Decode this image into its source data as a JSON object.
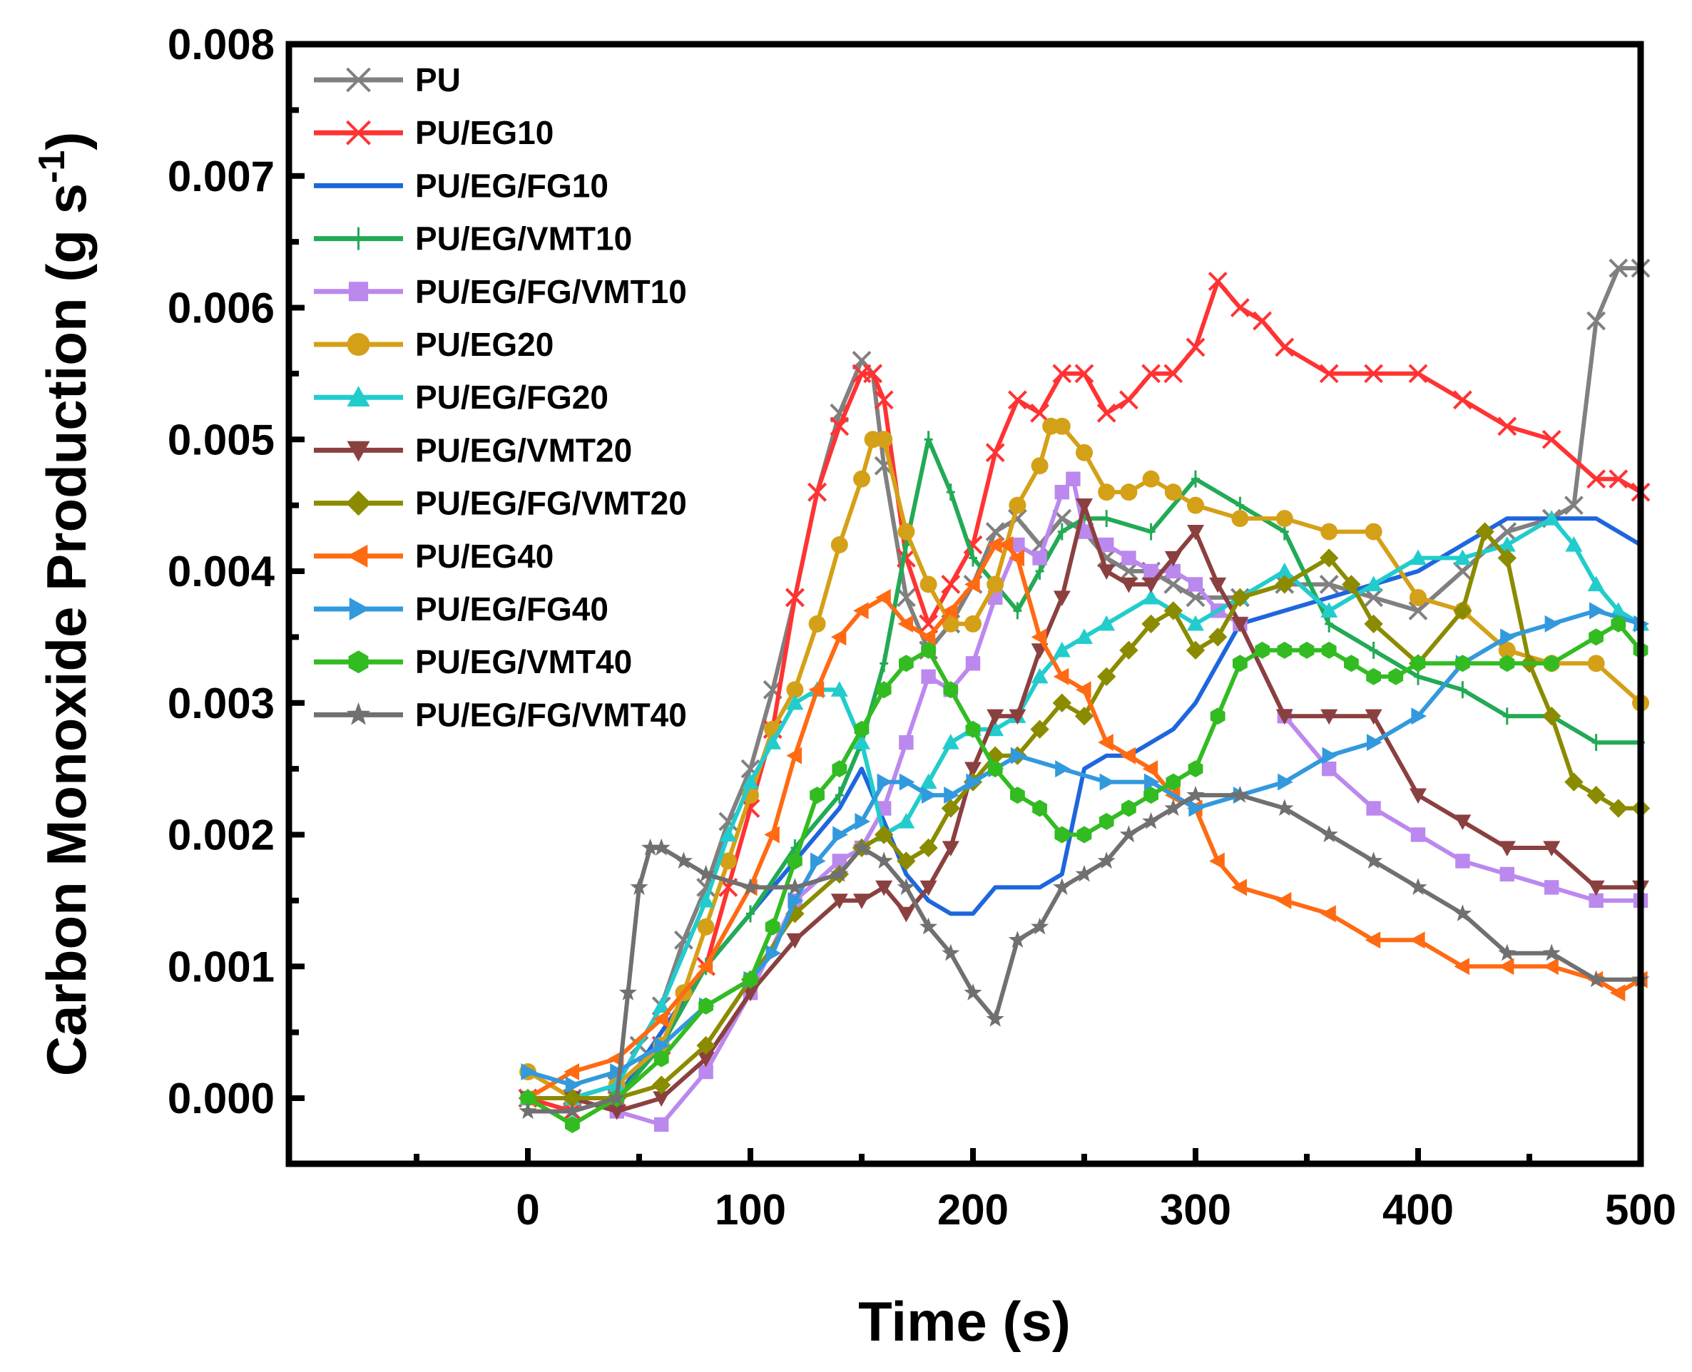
{
  "chart_data": {
    "type": "line",
    "title": "",
    "xlabel": "Time (s)",
    "ylabel_main": "Carbon Monoxide Production (g s",
    "ylabel_sup": "-1",
    "ylabel_close": ")",
    "xlim": [
      -100,
      500
    ],
    "ylim": [
      -0.0005,
      0.008
    ],
    "xticks": [
      0,
      100,
      200,
      300,
      400,
      500
    ],
    "xtick_labels": [
      "0",
      "100",
      "200",
      "300",
      "400",
      "500"
    ],
    "yticks": [
      0,
      0.001,
      0.002,
      0.003,
      0.004,
      0.005,
      0.006,
      0.007,
      0.008
    ],
    "ytick_labels": [
      "0.000",
      "0.001",
      "0.002",
      "0.003",
      "0.004",
      "0.005",
      "0.006",
      "0.007",
      "0.008"
    ],
    "legend_position": "top-left",
    "grid": false,
    "series": [
      {
        "name": "PU",
        "color": "#808080",
        "marker": "x",
        "x": [
          0,
          20,
          40,
          50,
          60,
          70,
          80,
          90,
          100,
          110,
          120,
          130,
          140,
          150,
          155,
          160,
          170,
          180,
          190,
          200,
          210,
          220,
          230,
          240,
          250,
          260,
          270,
          280,
          290,
          300,
          320,
          340,
          360,
          380,
          400,
          420,
          440,
          460,
          470,
          480,
          490,
          500
        ],
        "y": [
          0,
          0,
          0.0001,
          0.0004,
          0.0007,
          0.0012,
          0.0016,
          0.0021,
          0.0025,
          0.0031,
          0.0038,
          0.0046,
          0.0052,
          0.0056,
          0.0055,
          0.0048,
          0.0038,
          0.0034,
          0.0036,
          0.0039,
          0.0043,
          0.0044,
          0.0042,
          0.0044,
          0.0043,
          0.0041,
          0.004,
          0.004,
          0.0039,
          0.0038,
          0.0038,
          0.0039,
          0.0039,
          0.0038,
          0.0037,
          0.004,
          0.0043,
          0.0044,
          0.0045,
          0.0059,
          0.0063,
          0.0063
        ]
      },
      {
        "name": "PU/EG10",
        "color": "#ff3333",
        "marker": "x",
        "x": [
          0,
          20,
          40,
          60,
          80,
          90,
          100,
          110,
          120,
          130,
          140,
          150,
          155,
          160,
          170,
          180,
          190,
          200,
          210,
          220,
          230,
          240,
          250,
          260,
          270,
          280,
          290,
          300,
          310,
          320,
          330,
          340,
          360,
          380,
          400,
          420,
          440,
          460,
          480,
          490,
          500
        ],
        "y": [
          0,
          -0.0001,
          0,
          0.0004,
          0.001,
          0.0016,
          0.0022,
          0.0028,
          0.0038,
          0.0046,
          0.0051,
          0.0055,
          0.0055,
          0.0053,
          0.0041,
          0.0036,
          0.0039,
          0.0042,
          0.0049,
          0.0053,
          0.0052,
          0.0055,
          0.0055,
          0.0052,
          0.0053,
          0.0055,
          0.0055,
          0.0057,
          0.0062,
          0.006,
          0.0059,
          0.0057,
          0.0055,
          0.0055,
          0.0055,
          0.0053,
          0.0051,
          0.005,
          0.0047,
          0.0047,
          0.0046
        ]
      },
      {
        "name": "PU/EG/FG10",
        "color": "#1e66dd",
        "marker": "none",
        "x": [
          0,
          20,
          40,
          60,
          80,
          100,
          120,
          140,
          150,
          160,
          170,
          180,
          190,
          200,
          210,
          220,
          230,
          240,
          250,
          260,
          270,
          280,
          290,
          300,
          320,
          340,
          360,
          380,
          400,
          420,
          440,
          460,
          480,
          490,
          500
        ],
        "y": [
          0,
          0,
          0,
          0.0005,
          0.001,
          0.0014,
          0.0018,
          0.0022,
          0.0025,
          0.0021,
          0.0017,
          0.0015,
          0.0014,
          0.0014,
          0.0016,
          0.0016,
          0.0016,
          0.0017,
          0.0025,
          0.0026,
          0.0026,
          0.0027,
          0.0028,
          0.003,
          0.0036,
          0.0037,
          0.0038,
          0.0039,
          0.004,
          0.0042,
          0.0044,
          0.0044,
          0.0044,
          0.0043,
          0.0042
        ]
      },
      {
        "name": "PU/EG/VMT10",
        "color": "#22aa55",
        "marker": "plus",
        "x": [
          0,
          20,
          40,
          60,
          80,
          100,
          120,
          140,
          150,
          160,
          170,
          180,
          190,
          200,
          210,
          220,
          230,
          240,
          250,
          260,
          280,
          300,
          320,
          340,
          360,
          380,
          400,
          420,
          440,
          460,
          480,
          500
        ],
        "y": [
          0,
          0,
          0,
          0.0004,
          0.001,
          0.0014,
          0.0019,
          0.0023,
          0.0027,
          0.0033,
          0.0042,
          0.005,
          0.0046,
          0.0041,
          0.0039,
          0.0037,
          0.004,
          0.0043,
          0.0044,
          0.0044,
          0.0043,
          0.0047,
          0.0045,
          0.0043,
          0.0036,
          0.0034,
          0.0032,
          0.0031,
          0.0029,
          0.0029,
          0.0027,
          0.0027
        ]
      },
      {
        "name": "PU/EG/FG/VMT10",
        "color": "#bb88ee",
        "marker": "square",
        "x": [
          0,
          20,
          40,
          60,
          80,
          100,
          120,
          140,
          150,
          160,
          170,
          180,
          190,
          200,
          210,
          220,
          230,
          240,
          245,
          250,
          260,
          270,
          280,
          290,
          300,
          310,
          320,
          340,
          360,
          380,
          400,
          420,
          440,
          460,
          480,
          500
        ],
        "y": [
          0,
          0,
          -0.0001,
          -0.0002,
          0.0002,
          0.0008,
          0.0015,
          0.0018,
          0.0019,
          0.0022,
          0.0027,
          0.0032,
          0.0031,
          0.0033,
          0.0038,
          0.0042,
          0.0041,
          0.0046,
          0.0047,
          0.0043,
          0.0042,
          0.0041,
          0.004,
          0.004,
          0.0039,
          0.0037,
          0.0036,
          0.0029,
          0.0025,
          0.0022,
          0.002,
          0.0018,
          0.0017,
          0.0016,
          0.0015,
          0.0015
        ]
      },
      {
        "name": "PU/EG20",
        "color": "#d4a017",
        "marker": "circle",
        "x": [
          0,
          20,
          40,
          60,
          70,
          80,
          90,
          100,
          110,
          120,
          130,
          140,
          150,
          155,
          160,
          170,
          180,
          190,
          200,
          210,
          220,
          230,
          235,
          240,
          250,
          260,
          270,
          280,
          290,
          300,
          320,
          340,
          360,
          380,
          400,
          420,
          440,
          460,
          480,
          500
        ],
        "y": [
          0.0002,
          0,
          0.0001,
          0.0004,
          0.0008,
          0.0013,
          0.0018,
          0.0023,
          0.0028,
          0.0031,
          0.0036,
          0.0042,
          0.0047,
          0.005,
          0.005,
          0.0043,
          0.0039,
          0.0036,
          0.0036,
          0.0039,
          0.0045,
          0.0048,
          0.0051,
          0.0051,
          0.0049,
          0.0046,
          0.0046,
          0.0047,
          0.0046,
          0.0045,
          0.0044,
          0.0044,
          0.0043,
          0.0043,
          0.0038,
          0.0037,
          0.0034,
          0.0033,
          0.0033,
          0.003
        ]
      },
      {
        "name": "PU/EG/FG20",
        "color": "#22cccc",
        "marker": "triangle-up",
        "x": [
          0,
          20,
          40,
          60,
          80,
          90,
          100,
          110,
          120,
          130,
          140,
          150,
          160,
          170,
          180,
          190,
          200,
          210,
          220,
          230,
          240,
          250,
          260,
          280,
          300,
          320,
          340,
          360,
          380,
          400,
          420,
          440,
          460,
          470,
          480,
          490,
          500
        ],
        "y": [
          0,
          0,
          0.0001,
          0.0007,
          0.0015,
          0.002,
          0.0024,
          0.0027,
          0.003,
          0.0031,
          0.0031,
          0.0027,
          0.002,
          0.0021,
          0.0024,
          0.0027,
          0.0028,
          0.0028,
          0.0029,
          0.0032,
          0.0034,
          0.0035,
          0.0036,
          0.0038,
          0.0036,
          0.0038,
          0.004,
          0.0037,
          0.0039,
          0.0041,
          0.0041,
          0.0042,
          0.0044,
          0.0042,
          0.0039,
          0.0037,
          0.0036
        ]
      },
      {
        "name": "PU/EG/VMT20",
        "color": "#8b4040",
        "marker": "triangle-down",
        "x": [
          0,
          20,
          40,
          60,
          80,
          100,
          120,
          140,
          150,
          160,
          170,
          180,
          190,
          200,
          210,
          220,
          230,
          240,
          250,
          260,
          270,
          280,
          290,
          300,
          310,
          320,
          340,
          360,
          380,
          400,
          420,
          440,
          460,
          480,
          500
        ],
        "y": [
          0,
          0,
          -0.0001,
          0,
          0.0003,
          0.0008,
          0.0012,
          0.0015,
          0.0015,
          0.0016,
          0.0014,
          0.0016,
          0.0019,
          0.0025,
          0.0029,
          0.0029,
          0.0034,
          0.0038,
          0.0045,
          0.004,
          0.0039,
          0.0039,
          0.0041,
          0.0043,
          0.0039,
          0.0036,
          0.0029,
          0.0029,
          0.0029,
          0.0023,
          0.0021,
          0.0019,
          0.0019,
          0.0016,
          0.0016
        ]
      },
      {
        "name": "PU/EG/FG/VMT20",
        "color": "#8b8b00",
        "marker": "diamond",
        "x": [
          0,
          20,
          40,
          60,
          80,
          100,
          120,
          140,
          150,
          160,
          170,
          180,
          190,
          200,
          210,
          220,
          230,
          240,
          250,
          260,
          270,
          280,
          290,
          300,
          310,
          320,
          340,
          360,
          370,
          380,
          400,
          420,
          430,
          440,
          450,
          460,
          470,
          480,
          490,
          500
        ],
        "y": [
          0,
          0,
          0,
          0.0001,
          0.0004,
          0.0009,
          0.0014,
          0.0017,
          0.0019,
          0.002,
          0.0018,
          0.0019,
          0.0022,
          0.0024,
          0.0026,
          0.0026,
          0.0028,
          0.003,
          0.0029,
          0.0032,
          0.0034,
          0.0036,
          0.0037,
          0.0034,
          0.0035,
          0.0038,
          0.0039,
          0.0041,
          0.0039,
          0.0036,
          0.0033,
          0.0037,
          0.0043,
          0.0041,
          0.0033,
          0.0029,
          0.0024,
          0.0023,
          0.0022,
          0.0022
        ]
      },
      {
        "name": "PU/EG40",
        "color": "#ff6a13",
        "marker": "triangle-left",
        "x": [
          0,
          20,
          40,
          60,
          80,
          100,
          110,
          120,
          130,
          140,
          150,
          160,
          170,
          180,
          190,
          200,
          210,
          215,
          220,
          230,
          240,
          250,
          260,
          270,
          280,
          290,
          300,
          310,
          320,
          340,
          360,
          380,
          400,
          420,
          440,
          460,
          480,
          490,
          500
        ],
        "y": [
          0,
          0.0002,
          0.0003,
          0.0006,
          0.001,
          0.0016,
          0.002,
          0.0026,
          0.0031,
          0.0035,
          0.0037,
          0.0038,
          0.0036,
          0.0035,
          0.0037,
          0.0039,
          0.0042,
          0.0042,
          0.0041,
          0.0035,
          0.0032,
          0.0031,
          0.0027,
          0.0026,
          0.0025,
          0.0023,
          0.0022,
          0.0018,
          0.0016,
          0.0015,
          0.0014,
          0.0012,
          0.0012,
          0.001,
          0.001,
          0.001,
          0.0009,
          0.0008,
          0.0009
        ]
      },
      {
        "name": "PU/EG/FG40",
        "color": "#3399dd",
        "marker": "triangle-right",
        "x": [
          0,
          20,
          40,
          60,
          80,
          100,
          110,
          120,
          130,
          140,
          150,
          160,
          170,
          180,
          190,
          200,
          210,
          220,
          240,
          260,
          280,
          300,
          320,
          340,
          360,
          380,
          400,
          420,
          440,
          460,
          480,
          500
        ],
        "y": [
          0.0002,
          0.0001,
          0.0002,
          0.0004,
          0.0007,
          0.0009,
          0.0011,
          0.0015,
          0.0018,
          0.002,
          0.0021,
          0.0024,
          0.0024,
          0.0023,
          0.0023,
          0.0024,
          0.0025,
          0.0026,
          0.0025,
          0.0024,
          0.0024,
          0.0022,
          0.0023,
          0.0024,
          0.0026,
          0.0027,
          0.0029,
          0.0033,
          0.0035,
          0.0036,
          0.0037,
          0.0036
        ]
      },
      {
        "name": "PU/EG/VMT40",
        "color": "#33bb22",
        "marker": "hexagon",
        "x": [
          0,
          20,
          40,
          60,
          80,
          100,
          110,
          120,
          130,
          140,
          150,
          160,
          170,
          180,
          190,
          200,
          210,
          220,
          230,
          240,
          250,
          260,
          270,
          280,
          290,
          300,
          310,
          320,
          330,
          340,
          350,
          360,
          370,
          380,
          390,
          400,
          420,
          440,
          460,
          480,
          490,
          500
        ],
        "y": [
          0,
          -0.0002,
          0,
          0.0003,
          0.0007,
          0.0009,
          0.0013,
          0.0018,
          0.0023,
          0.0025,
          0.0028,
          0.0031,
          0.0033,
          0.0034,
          0.0031,
          0.0028,
          0.0025,
          0.0023,
          0.0022,
          0.002,
          0.002,
          0.0021,
          0.0022,
          0.0023,
          0.0024,
          0.0025,
          0.0029,
          0.0033,
          0.0034,
          0.0034,
          0.0034,
          0.0034,
          0.0033,
          0.0032,
          0.0032,
          0.0033,
          0.0033,
          0.0033,
          0.0033,
          0.0035,
          0.0036,
          0.0034
        ]
      },
      {
        "name": "PU/EG/FG/VMT40",
        "color": "#707070",
        "marker": "star",
        "x": [
          0,
          20,
          40,
          45,
          50,
          55,
          60,
          70,
          80,
          100,
          120,
          140,
          150,
          160,
          170,
          180,
          190,
          200,
          210,
          220,
          230,
          240,
          250,
          260,
          270,
          280,
          290,
          300,
          320,
          340,
          360,
          380,
          400,
          420,
          440,
          460,
          480,
          500
        ],
        "y": [
          -0.0001,
          -0.0001,
          0,
          0.0008,
          0.0016,
          0.0019,
          0.0019,
          0.0018,
          0.0017,
          0.0016,
          0.0016,
          0.0017,
          0.0019,
          0.0018,
          0.0016,
          0.0013,
          0.0011,
          0.0008,
          0.0006,
          0.0012,
          0.0013,
          0.0016,
          0.0017,
          0.0018,
          0.002,
          0.0021,
          0.0022,
          0.0023,
          0.0023,
          0.0022,
          0.002,
          0.0018,
          0.0016,
          0.0014,
          0.0011,
          0.0011,
          0.0009,
          0.0009
        ]
      }
    ]
  }
}
